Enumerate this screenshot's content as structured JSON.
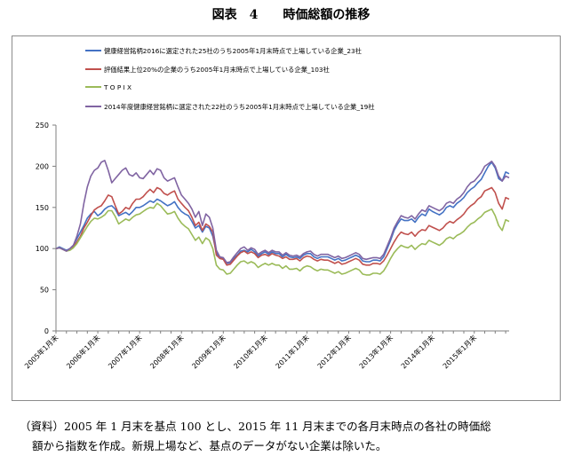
{
  "figure_title": "図表　4　　時価総額の推移",
  "note": {
    "line1": "（資料）2005 年 1 月末を基点 100 とし、2015 年 11 月末までの各月末時点の各社の時価総",
    "line2": "額から指数を作成。新規上場など、基点のデータがない企業は除いた。"
  },
  "chart_data": {
    "type": "line",
    "title": "",
    "xlabel": "",
    "ylabel": "",
    "ylim": [
      0,
      250
    ],
    "yticks": [
      0,
      50,
      100,
      150,
      200,
      250
    ],
    "grid": false,
    "legend_placement": "top-left",
    "x": [
      "2005年1月末",
      "2005年2月末",
      "2005年3月末",
      "2005年4月末",
      "2005年5月末",
      "2005年6月末",
      "2005年7月末",
      "2005年8月末",
      "2005年9月末",
      "2005年10月末",
      "2005年11月末",
      "2005年12月末",
      "2006年1月末",
      "2006年2月末",
      "2006年3月末",
      "2006年4月末",
      "2006年5月末",
      "2006年6月末",
      "2006年7月末",
      "2006年8月末",
      "2006年9月末",
      "2006年10月末",
      "2006年11月末",
      "2006年12月末",
      "2007年1月末",
      "2007年2月末",
      "2007年3月末",
      "2007年4月末",
      "2007年5月末",
      "2007年6月末",
      "2007年7月末",
      "2007年8月末",
      "2007年9月末",
      "2007年10月末",
      "2007年11月末",
      "2007年12月末",
      "2008年1月末",
      "2008年2月末",
      "2008年3月末",
      "2008年4月末",
      "2008年5月末",
      "2008年6月末",
      "2008年7月末",
      "2008年8月末",
      "2008年9月末",
      "2008年10月末",
      "2008年11月末",
      "2008年12月末",
      "2009年1月末",
      "2009年2月末",
      "2009年3月末",
      "2009年4月末",
      "2009年5月末",
      "2009年6月末",
      "2009年7月末",
      "2009年8月末",
      "2009年9月末",
      "2009年10月末",
      "2009年11月末",
      "2009年12月末",
      "2010年1月末",
      "2010年2月末",
      "2010年3月末",
      "2010年4月末",
      "2010年5月末",
      "2010年6月末",
      "2010年7月末",
      "2010年8月末",
      "2010年9月末",
      "2010年10月末",
      "2010年11月末",
      "2010年12月末",
      "2011年1月末",
      "2011年2月末",
      "2011年3月末",
      "2011年4月末",
      "2011年5月末",
      "2011年6月末",
      "2011年7月末",
      "2011年8月末",
      "2011年9月末",
      "2011年10月末",
      "2011年11月末",
      "2011年12月末",
      "2012年1月末",
      "2012年2月末",
      "2012年3月末",
      "2012年4月末",
      "2012年5月末",
      "2012年6月末",
      "2012年7月末",
      "2012年8月末",
      "2012年9月末",
      "2012年10月末",
      "2012年11月末",
      "2012年12月末",
      "2013年1月末",
      "2013年2月末",
      "2013年3月末",
      "2013年4月末",
      "2013年5月末",
      "2013年6月末",
      "2013年7月末",
      "2013年8月末",
      "2013年9月末",
      "2013年10月末",
      "2013年11月末",
      "2013年12月末",
      "2014年1月末",
      "2014年2月末",
      "2014年3月末",
      "2014年4月末",
      "2014年5月末",
      "2014年6月末",
      "2014年7月末",
      "2014年8月末",
      "2014年9月末",
      "2014年10月末",
      "2014年11月末",
      "2014年12月末",
      "2015年1月末",
      "2015年2月末",
      "2015年3月末",
      "2015年4月末",
      "2015年5月末",
      "2015年6月末",
      "2015年7月末",
      "2015年8月末",
      "2015年9月末",
      "2015年10月末",
      "2015年11月末"
    ],
    "x_tick_labels": [
      "2005年1月末",
      "2006年1月末",
      "2007年1月末",
      "2008年1月末",
      "2009年1月末",
      "2010年1月末",
      "2011年1月末",
      "2012年1月末",
      "2013年1月末",
      "2014年1月末",
      "2015年1月末"
    ],
    "x_tick_step": 12,
    "series": [
      {
        "name": "健康経営銘柄2016に選定された25社のうち2005年1月末時点で上場している企業_23社",
        "color": "#4472c4",
        "values": [
          100,
          102,
          100,
          98,
          100,
          104,
          112,
          120,
          128,
          137,
          142,
          145,
          140,
          143,
          148,
          151,
          152,
          148,
          140,
          142,
          144,
          141,
          145,
          150,
          150,
          152,
          155,
          158,
          156,
          160,
          158,
          155,
          152,
          154,
          157,
          150,
          145,
          142,
          140,
          133,
          125,
          128,
          120,
          127,
          125,
          115,
          95,
          88,
          88,
          82,
          83,
          88,
          92,
          97,
          98,
          96,
          99,
          96,
          91,
          94,
          96,
          93,
          96,
          94,
          94,
          90,
          93,
          90,
          89,
          90,
          88,
          92,
          94,
          94,
          90,
          88,
          90,
          90,
          90,
          88,
          86,
          88,
          85,
          86,
          88,
          90,
          92,
          90,
          85,
          84,
          84,
          86,
          86,
          85,
          90,
          100,
          110,
          122,
          130,
          136,
          134,
          134,
          136,
          132,
          138,
          142,
          140,
          148,
          145,
          143,
          141,
          144,
          150,
          152,
          150,
          155,
          158,
          162,
          168,
          172,
          175,
          180,
          184,
          192,
          200,
          205,
          198,
          185,
          182,
          193,
          191
        ]
      },
      {
        "name": "評価結果上位20%の企業のうち2005年1月末時点で上場している企業_103社",
        "color": "#c0504d",
        "values": [
          100,
          101,
          99,
          97,
          99,
          102,
          108,
          115,
          125,
          132,
          140,
          147,
          150,
          152,
          158,
          165,
          163,
          152,
          142,
          145,
          150,
          148,
          155,
          160,
          160,
          163,
          168,
          172,
          168,
          174,
          172,
          167,
          165,
          168,
          170,
          160,
          155,
          150,
          146,
          138,
          128,
          132,
          122,
          130,
          127,
          120,
          92,
          88,
          87,
          80,
          81,
          86,
          91,
          95,
          97,
          94,
          96,
          94,
          89,
          92,
          93,
          91,
          94,
          92,
          91,
          88,
          90,
          87,
          87,
          88,
          85,
          89,
          91,
          90,
          87,
          85,
          87,
          86,
          86,
          84,
          82,
          84,
          81,
          82,
          84,
          86,
          88,
          86,
          81,
          80,
          80,
          82,
          82,
          81,
          85,
          92,
          100,
          108,
          115,
          120,
          118,
          117,
          120,
          115,
          120,
          123,
          122,
          128,
          126,
          124,
          122,
          125,
          130,
          133,
          131,
          135,
          138,
          142,
          148,
          152,
          155,
          160,
          163,
          170,
          172,
          174,
          168,
          155,
          148,
          162,
          160
        ]
      },
      {
        "name": "T O P I X",
        "color": "#9bbb59",
        "values": [
          100,
          101,
          99,
          97,
          98,
          101,
          106,
          113,
          120,
          127,
          133,
          137,
          136,
          138,
          141,
          146,
          146,
          139,
          130,
          133,
          136,
          134,
          138,
          141,
          142,
          145,
          148,
          150,
          149,
          155,
          152,
          147,
          142,
          143,
          145,
          137,
          131,
          127,
          124,
          117,
          110,
          114,
          106,
          113,
          110,
          100,
          80,
          75,
          74,
          69,
          70,
          75,
          80,
          84,
          85,
          82,
          84,
          82,
          77,
          80,
          82,
          80,
          82,
          80,
          80,
          76,
          79,
          75,
          75,
          76,
          73,
          77,
          79,
          78,
          75,
          73,
          75,
          74,
          74,
          72,
          70,
          72,
          69,
          70,
          72,
          74,
          76,
          74,
          69,
          68,
          68,
          70,
          70,
          69,
          73,
          80,
          88,
          95,
          100,
          104,
          102,
          101,
          104,
          99,
          103,
          106,
          105,
          110,
          108,
          106,
          104,
          107,
          112,
          114,
          112,
          116,
          118,
          121,
          126,
          130,
          132,
          136,
          139,
          144,
          146,
          148,
          140,
          128,
          122,
          135,
          133
        ]
      },
      {
        "name": "2014年度健康経営銘柄に選定された22社のうち2005年1月末時点で上場している企業_19社",
        "color": "#8064a2",
        "values": [
          100,
          101,
          99,
          97,
          100,
          104,
          115,
          130,
          155,
          175,
          188,
          195,
          198,
          205,
          207,
          195,
          180,
          185,
          190,
          195,
          198,
          190,
          188,
          192,
          186,
          185,
          190,
          195,
          190,
          197,
          195,
          186,
          182,
          184,
          186,
          175,
          165,
          160,
          155,
          148,
          138,
          145,
          128,
          142,
          138,
          125,
          98,
          90,
          89,
          83,
          84,
          90,
          95,
          100,
          102,
          98,
          101,
          99,
          93,
          96,
          98,
          95,
          98,
          96,
          96,
          92,
          95,
          92,
          91,
          92,
          90,
          94,
          96,
          97,
          93,
          91,
          93,
          93,
          93,
          91,
          89,
          91,
          88,
          89,
          91,
          93,
          95,
          93,
          88,
          87,
          88,
          89,
          89,
          88,
          93,
          103,
          113,
          125,
          133,
          140,
          138,
          137,
          140,
          136,
          142,
          147,
          145,
          152,
          150,
          148,
          146,
          149,
          155,
          157,
          155,
          160,
          163,
          168,
          175,
          180,
          182,
          187,
          192,
          200,
          203,
          206,
          200,
          188,
          182,
          188,
          186
        ]
      }
    ]
  }
}
